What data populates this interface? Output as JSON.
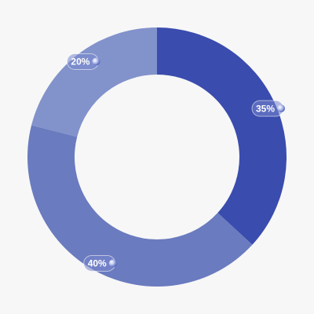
{
  "chart_data": {
    "type": "pie",
    "values": [
      35,
      40,
      20
    ],
    "value_labels": [
      "35%",
      "40%",
      "20%"
    ],
    "colors": [
      "#3a4cae",
      "#6a7bbf",
      "#8292cb"
    ]
  }
}
